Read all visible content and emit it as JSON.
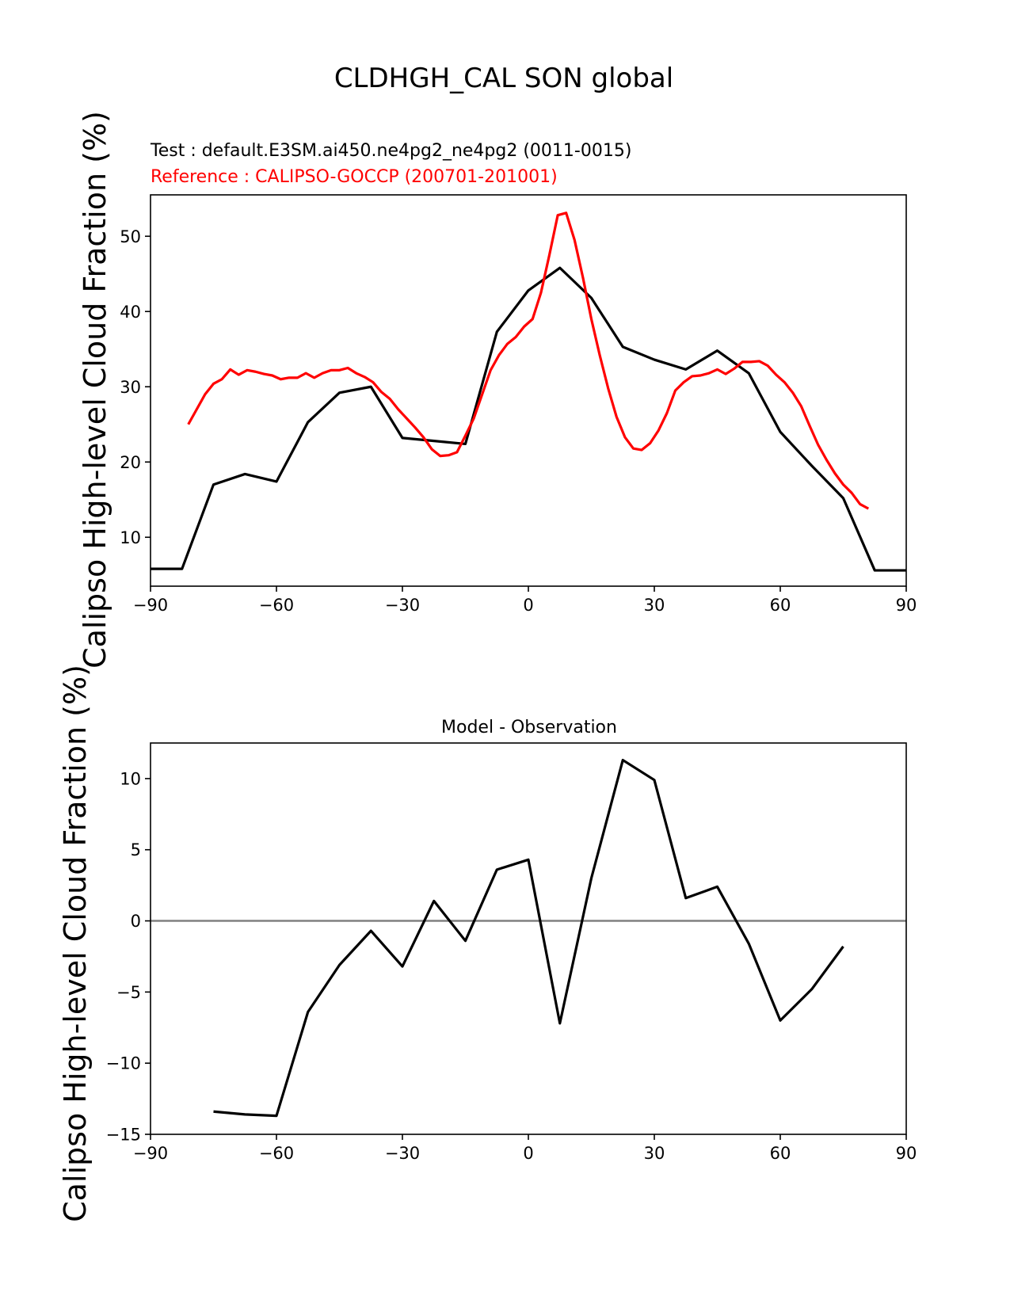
{
  "figure_title": "CLDHGH_CAL SON global",
  "chart_data": [
    {
      "type": "line",
      "test_label": "Test : default.E3SM.ai450.ne4pg2_ne4pg2 (0011-0015)",
      "reference_label": "Reference : CALIPSO-GOCCP (200701-201001)",
      "ylabel": "Calipso High-level Cloud Fraction (%)",
      "xlim": [
        -90,
        90
      ],
      "ylim": [
        3.5,
        55.5
      ],
      "xticks": [
        -90,
        -60,
        -30,
        0,
        30,
        60,
        90
      ],
      "xtick_labels": [
        "−90",
        "−60",
        "−30",
        "0",
        "30",
        "60",
        "90"
      ],
      "yticks": [
        10,
        20,
        30,
        40,
        50
      ],
      "ytick_labels": [
        "10",
        "20",
        "30",
        "40",
        "50"
      ],
      "series": [
        {
          "name": "Test",
          "color": "#000000",
          "x": [
            -90,
            -82.5,
            -75,
            -67.5,
            -60,
            -52.5,
            -45,
            -37.5,
            -30,
            -22.5,
            -15,
            -7.5,
            0,
            7.5,
            15,
            22.5,
            30,
            37.5,
            45,
            52.5,
            60,
            67.5,
            75,
            82.5,
            90
          ],
          "y": [
            5.8,
            5.8,
            17.0,
            18.4,
            17.4,
            25.3,
            29.2,
            30.0,
            23.2,
            22.8,
            22.4,
            37.3,
            42.8,
            45.8,
            41.8,
            35.3,
            33.6,
            32.3,
            34.8,
            31.8,
            24.0,
            19.5,
            15.2,
            5.6,
            5.6
          ]
        },
        {
          "name": "Reference",
          "color": "#ff0000",
          "x": [
            -81,
            -79,
            -77,
            -75,
            -73,
            -71,
            -69,
            -67,
            -65,
            -63,
            -61,
            -59,
            -57,
            -55,
            -53,
            -51,
            -49,
            -47,
            -45,
            -43,
            -41,
            -39,
            -37,
            -35,
            -33,
            -31,
            -29,
            -27,
            -25,
            -23,
            -21,
            -19,
            -17,
            -15,
            -13,
            -11,
            -9,
            -7,
            -5,
            -3,
            -1,
            1,
            3,
            5,
            7,
            9,
            11,
            13,
            15,
            17,
            19,
            21,
            23,
            25,
            27,
            29,
            31,
            33,
            35,
            37,
            39,
            41,
            43,
            45,
            47,
            49,
            51,
            53,
            55,
            57,
            59,
            61,
            63,
            65,
            67,
            69,
            71,
            73,
            75,
            77,
            79,
            81
          ],
          "y": [
            25.0,
            27.0,
            29.0,
            30.4,
            31.0,
            32.3,
            31.6,
            32.2,
            32.0,
            31.7,
            31.5,
            31.0,
            31.2,
            31.2,
            31.8,
            31.2,
            31.8,
            32.2,
            32.2,
            32.5,
            31.8,
            31.3,
            30.6,
            29.3,
            28.4,
            27.0,
            25.8,
            24.6,
            23.3,
            21.7,
            20.8,
            20.9,
            21.3,
            23.5,
            25.8,
            29.0,
            32.2,
            34.2,
            35.7,
            36.6,
            38.0,
            39.0,
            42.5,
            47.5,
            52.8,
            53.1,
            49.5,
            44.5,
            39.0,
            34.2,
            29.8,
            26.0,
            23.3,
            21.8,
            21.6,
            22.5,
            24.2,
            26.5,
            29.5,
            30.6,
            31.4,
            31.5,
            31.8,
            32.3,
            31.7,
            32.4,
            33.3,
            33.3,
            33.4,
            32.8,
            31.6,
            30.6,
            29.2,
            27.4,
            24.8,
            22.3,
            20.3,
            18.5,
            17.0,
            15.9,
            14.4,
            13.8
          ]
        }
      ]
    },
    {
      "type": "line",
      "title": "Model - Observation",
      "ylabel": "Calipso High-level Cloud Fraction (%)",
      "xlim": [
        -90,
        90
      ],
      "ylim": [
        -15,
        12.5
      ],
      "xticks": [
        -90,
        -60,
        -30,
        0,
        30,
        60,
        90
      ],
      "xtick_labels": [
        "−90",
        "−60",
        "−30",
        "0",
        "30",
        "60",
        "90"
      ],
      "yticks": [
        -15,
        -10,
        -5,
        0,
        5,
        10
      ],
      "ytick_labels": [
        "−15",
        "−10",
        "−5",
        "0",
        "5",
        "10"
      ],
      "zero_line_color": "#808080",
      "series": [
        {
          "name": "Difference",
          "color": "#000000",
          "x": [
            -75,
            -67.5,
            -60,
            -52.5,
            -45,
            -37.5,
            -30,
            -22.5,
            -15,
            -7.5,
            0,
            7.5,
            15,
            22.5,
            30,
            37.5,
            45,
            52.5,
            60,
            67.5,
            75
          ],
          "y": [
            -13.4,
            -13.6,
            -13.7,
            -6.4,
            -3.1,
            -0.7,
            -3.2,
            1.4,
            -1.4,
            3.6,
            4.3,
            -7.2,
            3.0,
            11.3,
            9.9,
            1.6,
            2.4,
            -1.6,
            -7.0,
            -4.8,
            -1.8
          ]
        }
      ]
    }
  ]
}
